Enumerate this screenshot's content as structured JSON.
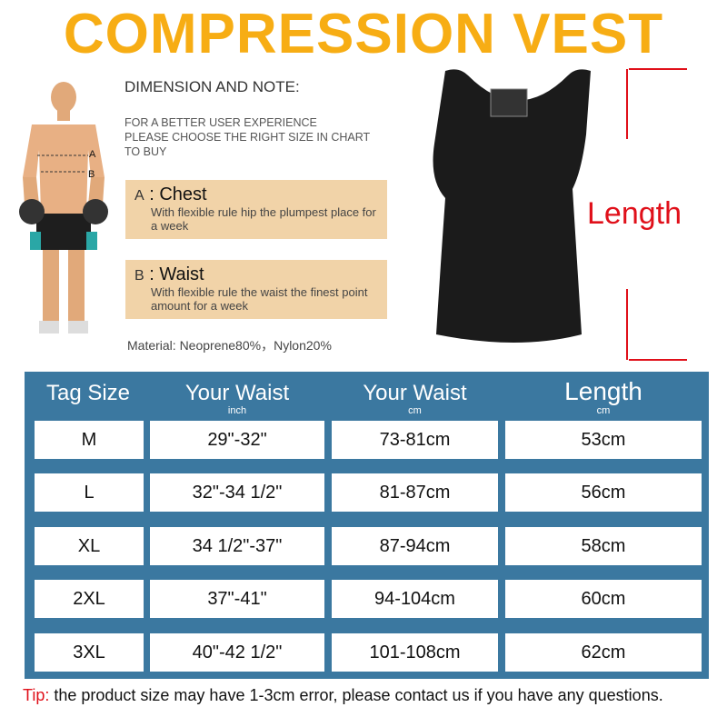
{
  "title": "COMPRESSION VEST",
  "dimension_heading": "DIMENSION AND NOTE:",
  "note": [
    "FOR A BETTER USER EXPERIENCE",
    "PLEASE CHOOSE THE RIGHT SIZE IN CHART  TO BUY"
  ],
  "figure_labels": {
    "a": "A",
    "b": "B"
  },
  "measures": [
    {
      "letter": "A",
      "name": "Chest",
      "desc": "With flexible rule hip the plumpest place for a week"
    },
    {
      "letter": "B",
      "name": "Waist",
      "desc": "With flexible rule the waist the finest point amount for a week"
    }
  ],
  "material": "Material: Neoprene80%，Nylon20%",
  "length_label": "Length",
  "table": {
    "headers": [
      {
        "title": "Tag Size",
        "unit": ""
      },
      {
        "title": "Your Waist",
        "unit": "inch"
      },
      {
        "title": "Your Waist",
        "unit": "cm"
      },
      {
        "title": "Length",
        "unit": "cm"
      }
    ],
    "rows": [
      [
        "M",
        "29\"-32\"",
        "73-81cm",
        "53cm"
      ],
      [
        "L",
        "32\"-34 1/2\"",
        "81-87cm",
        "56cm"
      ],
      [
        "XL",
        "34 1/2\"-37\"",
        "87-94cm",
        "58cm"
      ],
      [
        "2XL",
        "37\"-41\"",
        "94-104cm",
        "60cm"
      ],
      [
        "3XL",
        "40\"-42 1/2\"",
        "101-108cm",
        "62cm"
      ]
    ]
  },
  "tip": {
    "label": "Tip:",
    "text": " the product size may have 1-3cm error, please contact us if you have any questions."
  },
  "colors": {
    "title": "#f7ad14",
    "table": "#3b78a0",
    "box": "#f1d3a8",
    "accent": "#e0101a"
  }
}
